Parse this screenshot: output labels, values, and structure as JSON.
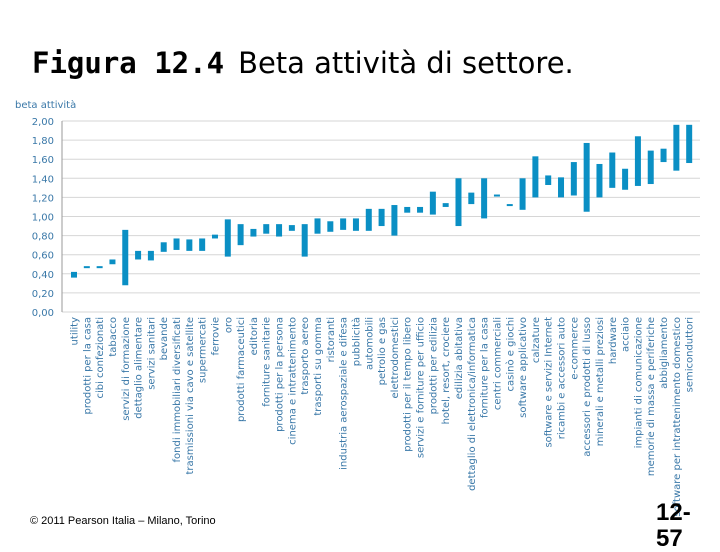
{
  "slide": {
    "figure_number": "Figura 12.4",
    "title": "Beta attività di settore.",
    "copyright": "© 2011 Pearson Italia – Milano, Torino",
    "page_number": "12-57"
  },
  "chart_data": {
    "type": "bar",
    "subtype": "floating-range",
    "title": "",
    "ylabel": "beta attività",
    "xlabel": "",
    "ylim": [
      0,
      2
    ],
    "ytick_labels": [
      "0,00",
      "0,20",
      "0,40",
      "0,60",
      "0,80",
      "1,00",
      "1,20",
      "1,40",
      "1,60",
      "1,80",
      "2,00"
    ],
    "color": "#0a8fc4",
    "categories": [
      "utility",
      "prodotti per la casa",
      "cibi confezionati",
      "tabacco",
      "servizi di formazione",
      "dettaglio alimentare",
      "servizi sanitari",
      "bevande",
      "fondi immobiliari diversificati",
      "trasmissioni via cavo e satellite",
      "supermercati",
      "ferrovie",
      "oro",
      "prodotti farmaceutici",
      "editoria",
      "forniture sanitarie",
      "prodotti per la persona",
      "cinema e intrattenimento",
      "trasporto aereo",
      "trasporti su gomma",
      "ristoranti",
      "industria aerospaziale e difesa",
      "pubblicità",
      "automobili",
      "petrolio e gas",
      "elettrodomestici",
      "prodotti per il tempo libero",
      "servizi e forniture per ufficio",
      "prodotti per edilizia",
      "hotel, resort, crociere",
      "edilizia abitativa",
      "dettaglio di elettronica/informatica",
      "forniture per la casa",
      "centri commerciali",
      "casinò e giochi",
      "software applicativo",
      "calzature",
      "software e servizi Internet",
      "ricambi e accessori auto",
      "e-commerce",
      "accessori e prodotti di lusso",
      "minerali e metalli preziosi",
      "hardware",
      "acciaio",
      "impianti di comunicazione",
      "memorie di massa e periferiche",
      "abbigliamento",
      "software per intrattenimento domestico",
      "semiconduttori"
    ],
    "values_low": [
      0.36,
      0.46,
      0.47,
      0.5,
      0.28,
      0.55,
      0.54,
      0.63,
      0.65,
      0.64,
      0.64,
      0.77,
      0.58,
      0.7,
      0.79,
      0.82,
      0.79,
      0.85,
      0.58,
      0.82,
      0.84,
      0.86,
      0.85,
      0.85,
      0.9,
      0.8,
      1.04,
      1.04,
      1.02,
      1.1,
      0.9,
      1.13,
      0.98,
      1.22,
      1.12,
      1.07,
      1.2,
      1.33,
      1.2,
      1.22,
      1.05,
      1.2,
      1.3,
      1.28,
      1.32,
      1.34,
      1.57,
      1.48,
      1.56
    ],
    "values_high": [
      0.42,
      0.48,
      0.48,
      0.55,
      0.86,
      0.64,
      0.64,
      0.73,
      0.77,
      0.76,
      0.77,
      0.81,
      0.97,
      0.92,
      0.87,
      0.92,
      0.92,
      0.91,
      0.92,
      0.98,
      0.95,
      0.98,
      0.98,
      1.08,
      1.08,
      1.12,
      1.1,
      1.1,
      1.26,
      1.14,
      1.4,
      1.25,
      1.4,
      1.23,
      1.13,
      1.4,
      1.63,
      1.43,
      1.41,
      1.57,
      1.77,
      1.55,
      1.67,
      1.5,
      1.84,
      1.69,
      1.71,
      1.96,
      1.96
    ]
  }
}
